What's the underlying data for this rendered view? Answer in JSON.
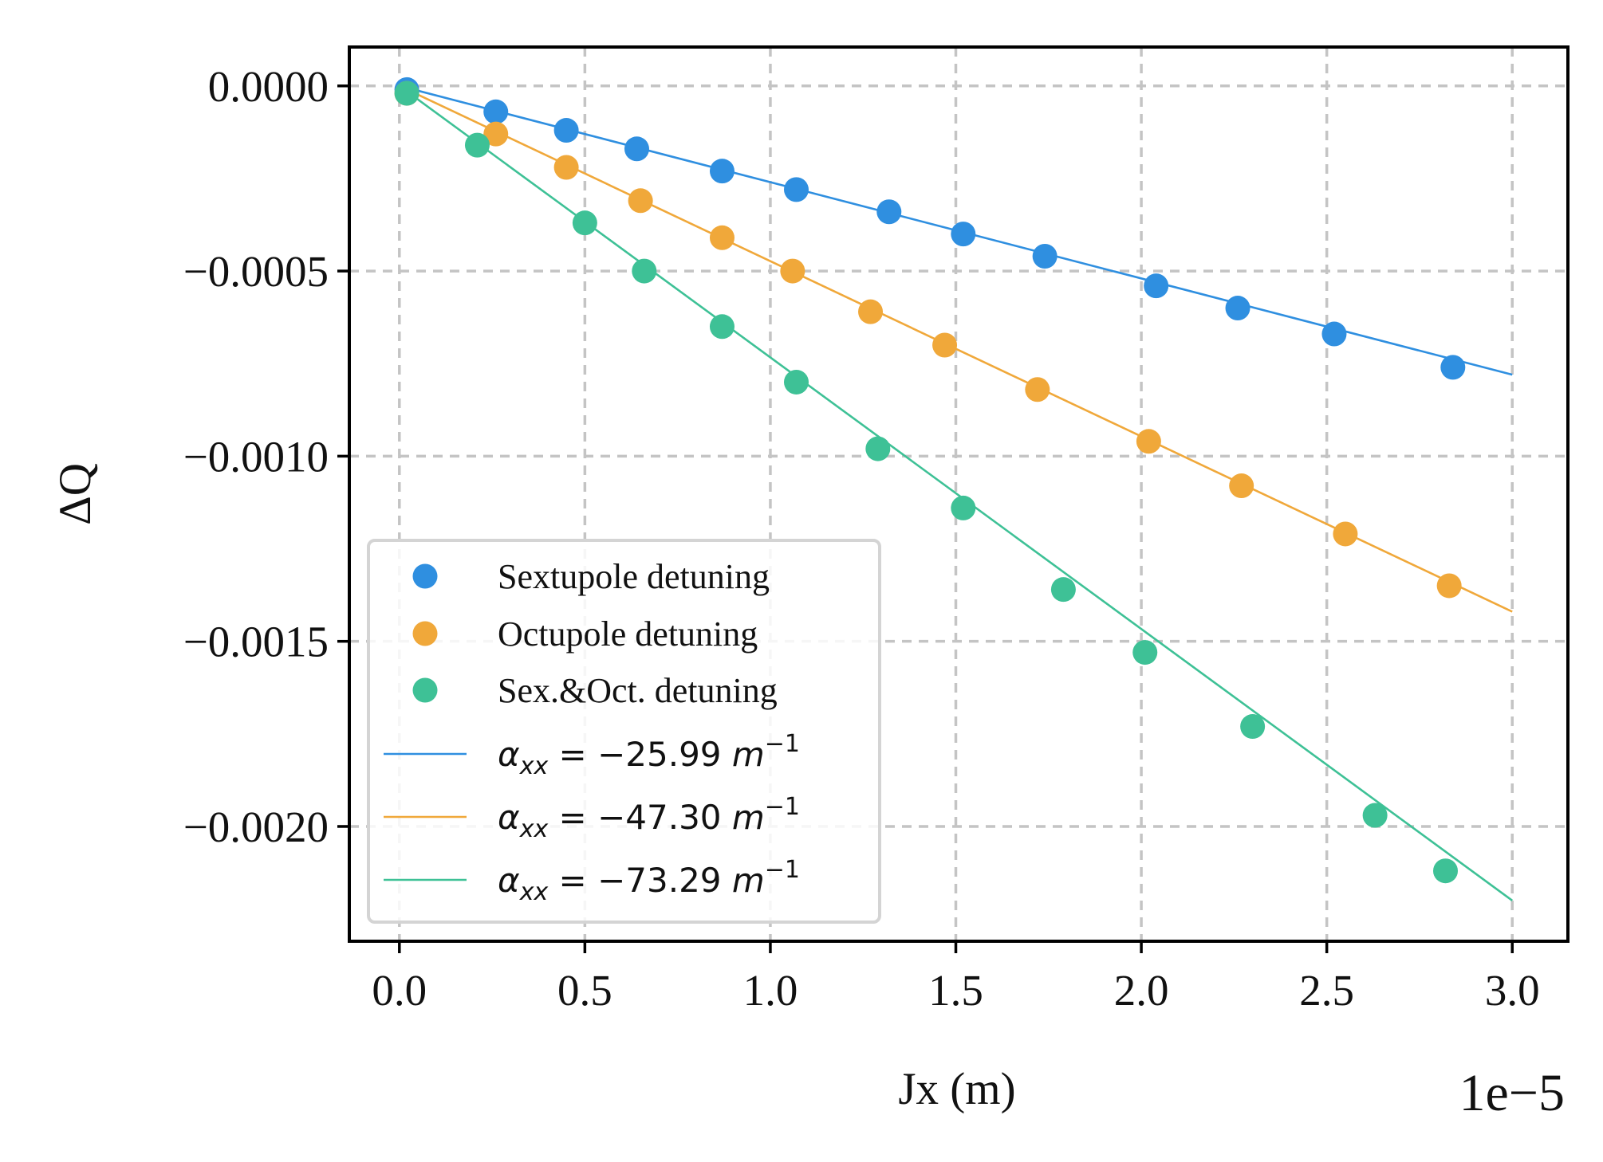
{
  "chart_data": {
    "type": "scatter",
    "title": "",
    "xlabel": "Jx (m)",
    "ylabel": "ΔQ",
    "x_offset_label": "1e−5",
    "xlim": [
      -0.135,
      3.15
    ],
    "ylim": [
      -0.00231,
      0.000105
    ],
    "xticks": [
      0.0,
      0.5,
      1.0,
      1.5,
      2.0,
      2.5,
      3.0
    ],
    "xtick_labels": [
      "0.0",
      "0.5",
      "1.0",
      "1.5",
      "2.0",
      "2.5",
      "3.0"
    ],
    "yticks": [
      0.0,
      -0.0005,
      -0.001,
      -0.0015,
      -0.002
    ],
    "ytick_labels": [
      "0.0000",
      "−0.0005",
      "−0.0010",
      "−0.0015",
      "−0.0020"
    ],
    "grid": true,
    "legend_position": "lower-left",
    "series": [
      {
        "name": "Sextupole detuning",
        "kind": "points",
        "color": "#2f8fe0",
        "x": [
          0.02,
          0.26,
          0.45,
          0.64,
          0.87,
          1.07,
          1.32,
          1.52,
          1.74,
          2.04,
          2.26,
          2.52,
          2.84
        ],
        "y": [
          -1e-05,
          -7e-05,
          -0.00012,
          -0.00017,
          -0.00023,
          -0.00028,
          -0.00034,
          -0.0004,
          -0.00046,
          -0.00054,
          -0.0006,
          -0.00067,
          -0.00076
        ]
      },
      {
        "name": "Octupole detuning",
        "kind": "points",
        "color": "#f0a83a",
        "x": [
          0.02,
          0.26,
          0.45,
          0.65,
          0.87,
          1.06,
          1.27,
          1.47,
          1.72,
          2.02,
          2.27,
          2.55,
          2.83
        ],
        "y": [
          -2e-05,
          -0.00013,
          -0.00022,
          -0.00031,
          -0.00041,
          -0.0005,
          -0.00061,
          -0.0007,
          -0.00082,
          -0.00096,
          -0.00108,
          -0.00121,
          -0.00135
        ]
      },
      {
        "name": "Sex.&Oct. detuning",
        "kind": "points",
        "color": "#3ec196",
        "x": [
          0.02,
          0.21,
          0.5,
          0.66,
          0.87,
          1.07,
          1.29,
          1.52,
          1.79,
          2.01,
          2.3,
          2.63,
          2.82
        ],
        "y": [
          -2e-05,
          -0.00016,
          -0.00037,
          -0.0005,
          -0.00065,
          -0.0008,
          -0.00098,
          -0.00114,
          -0.00136,
          -0.00153,
          -0.00173,
          -0.00197,
          -0.00212
        ]
      },
      {
        "name": "α_xx = −25.99 m^−1",
        "kind": "fit-line",
        "color": "#2f8fe0",
        "x": [
          0.0,
          3.0
        ],
        "y": [
          0.0,
          -0.00078
        ]
      },
      {
        "name": "α_xx = −47.30 m^−1",
        "kind": "fit-line",
        "color": "#f0a83a",
        "x": [
          0.0,
          3.0
        ],
        "y": [
          0.0,
          -0.00142
        ]
      },
      {
        "name": "α_xx = −73.29 m^−1",
        "kind": "fit-line",
        "color": "#3ec196",
        "x": [
          0.0,
          3.0
        ],
        "y": [
          0.0,
          -0.0022
        ]
      }
    ],
    "legend": [
      {
        "kind": "marker",
        "color": "#2f8fe0",
        "label": "Sextupole detuning"
      },
      {
        "kind": "marker",
        "color": "#f0a83a",
        "label": "Octupole detuning"
      },
      {
        "kind": "marker",
        "color": "#3ec196",
        "label": "Sex.&Oct. detuning"
      },
      {
        "kind": "line",
        "color": "#2f8fe0",
        "label": "α_xx = −25.99 m^−1",
        "value": "−25.99"
      },
      {
        "kind": "line",
        "color": "#f0a83a",
        "label": "α_xx = −47.30 m^−1",
        "value": "−47.30"
      },
      {
        "kind": "line",
        "color": "#3ec196",
        "label": "α_xx = −73.29 m^−1",
        "value": "−73.29"
      }
    ]
  }
}
